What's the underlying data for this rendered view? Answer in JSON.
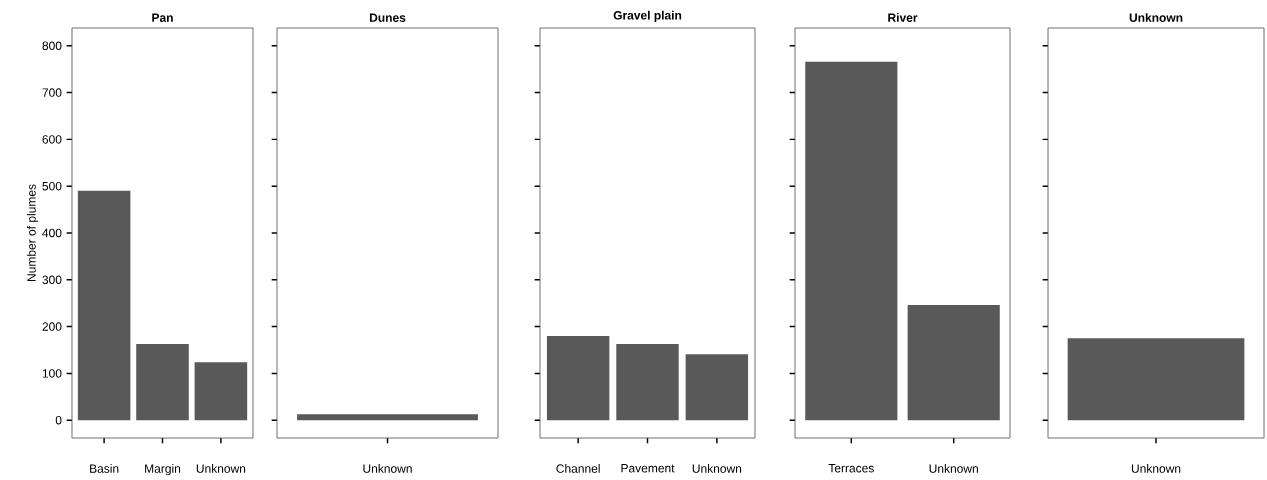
{
  "chart_data": [
    {
      "type": "bar",
      "title": "Pan",
      "ylabel": "Number of plumes",
      "categories": [
        "Basin",
        "Margin",
        "Unknown"
      ],
      "values": [
        490,
        163,
        124
      ],
      "color": "#595959",
      "ylim": [
        -38,
        838
      ],
      "yticks": [
        0,
        100,
        200,
        300,
        400,
        500,
        600,
        700,
        800
      ],
      "grid": false
    },
    {
      "type": "bar",
      "title": "Dunes",
      "categories": [
        "Unknown"
      ],
      "values": [
        13
      ],
      "color": "#595959",
      "ylim": [
        -38,
        838
      ],
      "yticks": [
        0,
        100,
        200,
        300,
        400,
        500,
        600,
        700,
        800
      ],
      "tick_labels": "x",
      "grid": false
    },
    {
      "type": "bar",
      "title": "Gravel plain",
      "categories": [
        "Channel",
        "Pavement",
        "Unknown"
      ],
      "values": [
        180,
        163,
        141
      ],
      "color": "#595959",
      "ylim": [
        -38,
        838
      ],
      "yticks": [
        0,
        100,
        200,
        300,
        400,
        500,
        600,
        700,
        800
      ],
      "tick_labels": "x",
      "grid": false
    },
    {
      "type": "bar",
      "title": "River",
      "categories": [
        "Terraces",
        "Unknown"
      ],
      "values": [
        766,
        246
      ],
      "color": "#595959",
      "ylim": [
        -38,
        838
      ],
      "yticks": [
        0,
        100,
        200,
        300,
        400,
        500,
        600,
        700,
        800
      ],
      "tick_labels": "x",
      "grid": false
    },
    {
      "type": "bar",
      "title": "Unknown",
      "categories": [
        "Unknown"
      ],
      "values": [
        175
      ],
      "color": "#595959",
      "ylim": [
        -38,
        838
      ],
      "yticks": [
        0,
        100,
        200,
        300,
        400,
        500,
        600,
        700,
        800
      ],
      "tick_labels": "x",
      "grid": false
    }
  ]
}
